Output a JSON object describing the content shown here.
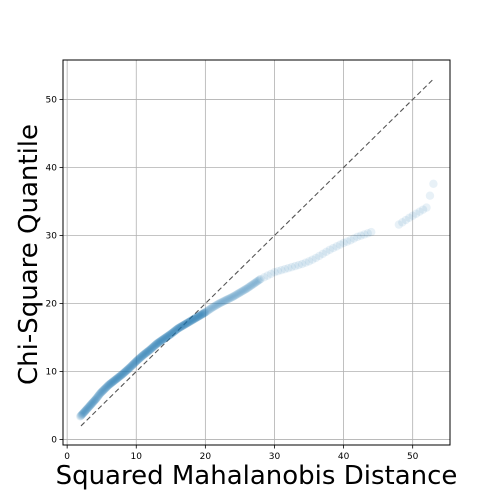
{
  "chart_data": {
    "type": "scatter",
    "title": "",
    "xlabel": "Squared Mahalanobis Distance",
    "ylabel": "Chi-Square Quantile",
    "xlim": [
      -0.6,
      55.4
    ],
    "ylim": [
      -0.8,
      55.8
    ],
    "xticks": [
      0,
      10,
      20,
      30,
      40,
      50
    ],
    "yticks": [
      0,
      10,
      20,
      30,
      40,
      50
    ],
    "grid": true,
    "point_color": "#1f77b4",
    "reference_line": {
      "x": [
        2,
        53
      ],
      "y": [
        2,
        53
      ],
      "style": "dashed",
      "color": "#555555"
    },
    "sample_curve": {
      "x": [
        1.9,
        2.8,
        3.5,
        4.2,
        4.8,
        5.4,
        6.0,
        7.0,
        8.0,
        9.0,
        10.0,
        11.0,
        12.0,
        13.0,
        14.0,
        15.0,
        16.0,
        17.0,
        18.0,
        19.0,
        20.0,
        21.0,
        22.0,
        23.0,
        24.0,
        25.0,
        26.0,
        27.0,
        28.0,
        29.0,
        30.0,
        31.0,
        32.0,
        33.0,
        34.0,
        35.0,
        36.0,
        37.0,
        38.0,
        39.0,
        40.0,
        41.0,
        42.0,
        44.0,
        48.0,
        49.5,
        52.0,
        53.0
      ],
      "y": [
        3.4,
        4.4,
        5.2,
        6.0,
        6.8,
        7.4,
        8.0,
        8.8,
        9.6,
        10.5,
        11.5,
        12.4,
        13.2,
        14.1,
        14.8,
        15.5,
        16.3,
        16.9,
        17.5,
        18.1,
        18.7,
        19.4,
        20.0,
        20.5,
        21.0,
        21.6,
        22.2,
        22.9,
        23.6,
        24.1,
        24.6,
        24.9,
        25.2,
        25.5,
        25.8,
        26.2,
        26.7,
        27.3,
        27.9,
        28.4,
        28.9,
        29.3,
        29.8,
        30.5,
        31.6,
        32.6,
        34.1,
        37.6
      ]
    }
  }
}
